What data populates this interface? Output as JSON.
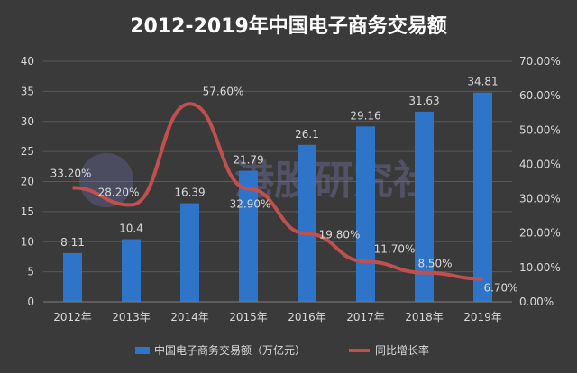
{
  "chart_data": {
    "type": "bar",
    "title": "2012-2019年中国电子商务交易额",
    "categories": [
      "2012年",
      "2013年",
      "2014年",
      "2015年",
      "2016年",
      "2017年",
      "2018年",
      "2019年"
    ],
    "series": [
      {
        "name": "中国电子商务交易额（万亿元）",
        "kind": "bar",
        "axis": "left",
        "values": [
          8.11,
          10.4,
          16.39,
          21.79,
          26.1,
          29.16,
          31.63,
          34.81
        ],
        "labels": [
          "8.11",
          "10.4",
          "16.39",
          "21.79",
          "26.1",
          "29.16",
          "31.63",
          "34.81"
        ]
      },
      {
        "name": "同比增长率",
        "kind": "line",
        "axis": "right",
        "values": [
          0.332,
          0.282,
          0.576,
          0.329,
          0.198,
          0.117,
          0.085,
          0.067
        ],
        "labels": [
          "33.20%",
          "28.20%",
          "57.60%",
          "32.90%",
          "19.80%",
          "11.70%",
          "8.50%",
          "6.70%"
        ]
      }
    ],
    "y_left": {
      "range": [
        0,
        40
      ],
      "ticks": [
        "0",
        "5",
        "10",
        "15",
        "20",
        "25",
        "30",
        "35",
        "40"
      ]
    },
    "y_right": {
      "range": [
        0,
        0.7
      ],
      "ticks": [
        "0.00%",
        "10.00%",
        "20.00%",
        "30.00%",
        "40.00%",
        "50.00%",
        "60.00%",
        "70.00%"
      ]
    },
    "grid": true,
    "legend": "bottom",
    "colors": {
      "background": "#3a3a3a",
      "bar": "#2e74c8",
      "line": "#c0504d",
      "text": "#d9d9d9",
      "title": "#ffffff",
      "grid": "#595959",
      "watermark": "#7f7fb8"
    },
    "watermark": "港股研究社"
  }
}
